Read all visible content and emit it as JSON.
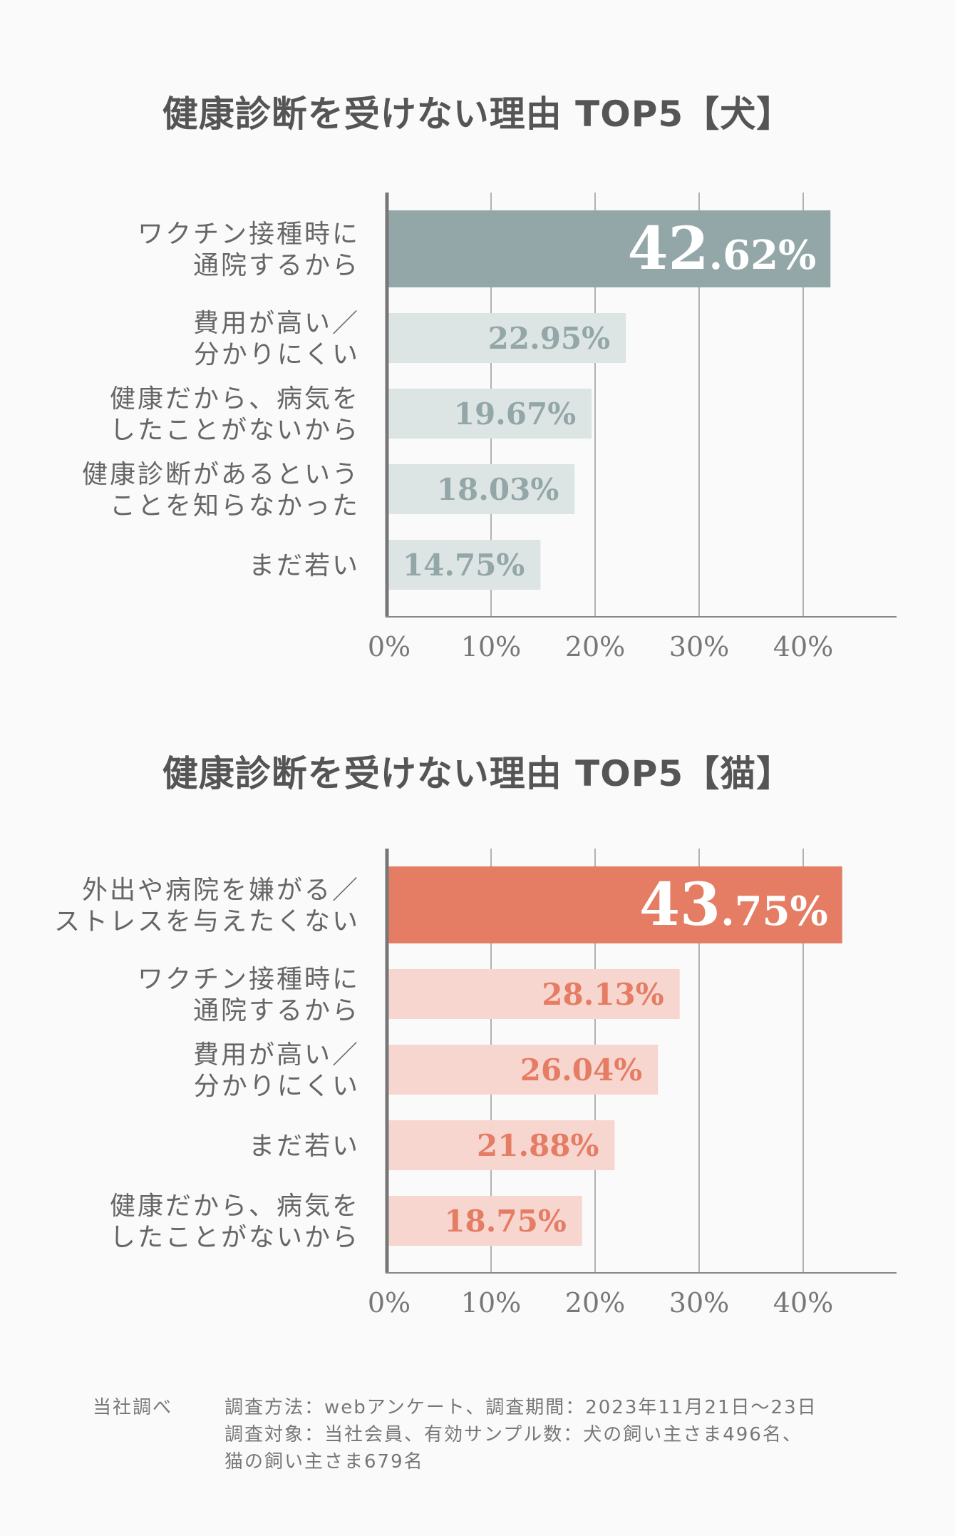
{
  "chart_data": [
    {
      "type": "bar",
      "title": "健康診断を受けない理由 TOP5【犬】",
      "categories": [
        [
          "ワクチン接種時に",
          "通院するから"
        ],
        [
          "費用が高い／",
          "分かりにくい"
        ],
        [
          "健康だから、病気を",
          "したことがないから"
        ],
        [
          "健康診断があるという",
          "ことを知らなかった"
        ],
        [
          "まだ若い"
        ]
      ],
      "values": [
        42.62,
        22.95,
        19.67,
        18.03,
        14.75
      ],
      "value_labels": [
        "42.62%",
        "22.95%",
        "19.67%",
        "18.03%",
        "14.75%"
      ],
      "xticks": [
        "0%",
        "10%",
        "20%",
        "30%",
        "40%"
      ],
      "xlim": [
        0,
        48
      ],
      "orientation": "horizontal",
      "grid": true,
      "colors": {
        "highlight": "#93a6a8",
        "bar": "#dde4e4",
        "label": "#93a6a8",
        "highlight_label": "#ffffff"
      }
    },
    {
      "type": "bar",
      "title": "健康診断を受けない理由 TOP5【猫】",
      "categories": [
        [
          "外出や病院を嫌がる／",
          "ストレスを与えたくない"
        ],
        [
          "ワクチン接種時に",
          "通院するから"
        ],
        [
          "費用が高い／",
          "分かりにくい"
        ],
        [
          "まだ若い"
        ],
        [
          "健康だから、病気を",
          "したことがないから"
        ]
      ],
      "values": [
        43.75,
        28.13,
        26.04,
        21.88,
        18.75
      ],
      "value_labels": [
        "43.75%",
        "28.13%",
        "26.04%",
        "21.88%",
        "18.75%"
      ],
      "xticks": [
        "0%",
        "10%",
        "20%",
        "30%",
        "40%"
      ],
      "xlim": [
        0,
        48
      ],
      "orientation": "horizontal",
      "grid": true,
      "colors": {
        "highlight": "#e57c64",
        "bar": "#f7d6cf",
        "label": "#e57c64",
        "highlight_label": "#ffffff"
      }
    }
  ],
  "footer": {
    "source": "当社調べ",
    "line1": "調査方法：webアンケート、調査期間：2023年11月21日〜23日",
    "line2": "調査対象：当社会員、有効サンプル数：犬の飼い主さま496名、",
    "line3": "猫の飼い主さま679名"
  }
}
